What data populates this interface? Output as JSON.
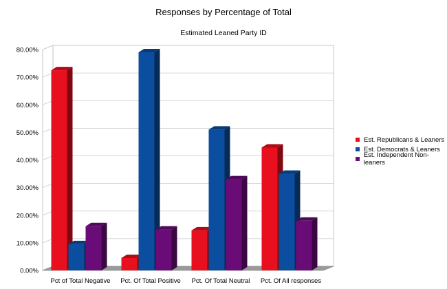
{
  "chart_data": {
    "type": "bar",
    "title": "Responses by Percentage of Total",
    "subtitle": "Estimated Leaned Party ID",
    "categories": [
      "Pct of Total Negative",
      "Pct. Of Total Positive",
      "Pct. Of Total Neutral",
      "Pct. Of All responses"
    ],
    "series": [
      {
        "name": "Est. Republicans & Leaners",
        "color": "#e8101e",
        "values": [
          72.5,
          4.5,
          14.5,
          44.5
        ]
      },
      {
        "name": "Est. Democrats & Leaners",
        "color": "#0b4e9f",
        "values": [
          9.5,
          79.0,
          51.0,
          35.0
        ]
      },
      {
        "name": "Est. Independent Non-leaners",
        "color": "#6a0c78",
        "values": [
          16.0,
          14.8,
          33.0,
          18.0
        ]
      }
    ],
    "yticks": [
      "0.00%",
      "10.00%",
      "20.00%",
      "30.00%",
      "40.00%",
      "50.00%",
      "60.00%",
      "70.00%",
      "80.00%"
    ],
    "ylim": [
      0,
      80
    ],
    "grid": true,
    "legend_position": "right",
    "style": "3d"
  }
}
